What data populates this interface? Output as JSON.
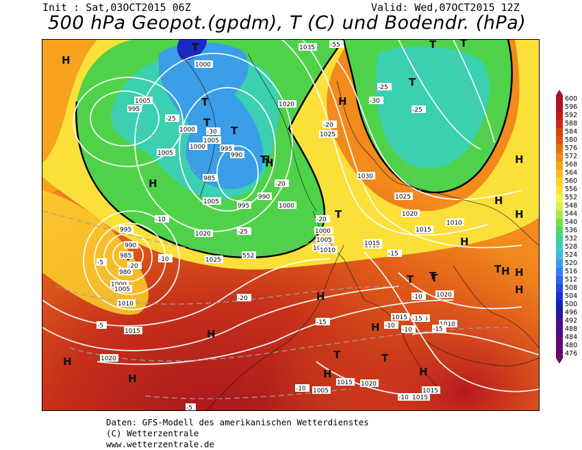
{
  "header": {
    "init": "Init : Sat,03OCT2015 06Z",
    "valid": "Valid: Wed,07OCT2015 12Z",
    "title": "500 hPa Geopot.(gpdm), T (C) und Bodendr. (hPa)"
  },
  "footer": {
    "line1": "Daten: GFS-Modell des amerikanischen Wetterdienstes",
    "line2": "(C) Wetterzentrale",
    "line3": "www.wetterzentrale.de"
  },
  "scale": {
    "labels": [
      "600",
      "596",
      "592",
      "588",
      "584",
      "580",
      "576",
      "572",
      "568",
      "564",
      "560",
      "556",
      "552",
      "548",
      "544",
      "540",
      "536",
      "532",
      "528",
      "524",
      "520",
      "516",
      "512",
      "508",
      "504",
      "500",
      "496",
      "492",
      "488",
      "484",
      "480",
      "476"
    ],
    "colors": [
      "#a80f2c",
      "#b31424",
      "#c01a1a",
      "#cc2a12",
      "#d8400c",
      "#e0560b",
      "#e86e0e",
      "#ef8a13",
      "#f4a31a",
      "#f8bb20",
      "#fbd12a",
      "#fee234",
      "#fff03e",
      "#d9f24a",
      "#a8ea4c",
      "#6fe04c",
      "#4cd86a",
      "#3fd298",
      "#3ec8c4",
      "#3db8e0",
      "#3a9ef0",
      "#3282f2",
      "#2a66ee",
      "#2048e4",
      "#1830d2",
      "#1620b8",
      "#2a16a4",
      "#3c1296",
      "#4a0e8a",
      "#580a7e",
      "#660870",
      "#6f0564"
    ]
  },
  "map_labels": {
    "highs": [
      "H",
      "H",
      "H",
      "H",
      "H",
      "H",
      "H",
      "H",
      "H",
      "H",
      "H",
      "H",
      "H",
      "H",
      "H",
      "H",
      "H",
      "H",
      "H"
    ],
    "lows": [
      "T",
      "T",
      "T",
      "T",
      "T",
      "T",
      "T",
      "T",
      "T",
      "T",
      "T",
      "T",
      "T",
      "T",
      "T",
      "T"
    ],
    "isobars": [
      "1000",
      "1005",
      "995",
      "1000",
      "1005",
      "995",
      "985",
      "1000",
      "990",
      "990",
      "995",
      "1005",
      "1000",
      "1005",
      "995",
      "990",
      "985",
      "980",
      "1000",
      "1005",
      "1010",
      "1015",
      "1020",
      "1025",
      "1035",
      "1020",
      "1025",
      "1030",
      "1025",
      "1020",
      "1015",
      "1015",
      "1010",
      "1000",
      "1005",
      "1010",
      "1015",
      "1020",
      "1015",
      "1010",
      "1015",
      "1020",
      "1015",
      "1015",
      "1005",
      "1010",
      "1015",
      "1020"
    ],
    "temps": [
      "-55",
      "-25",
      "-30",
      "-30",
      "-25",
      "-25",
      "-20",
      "-20",
      "-20",
      "-25",
      "-20",
      "-10",
      "-10",
      "-5",
      "-10",
      "-15",
      "-15",
      "-10",
      "-15",
      "-10",
      "-15",
      "-10",
      "-10",
      "-5",
      "-5",
      "-10",
      "-10",
      "-20"
    ],
    "contour_552": "552"
  },
  "colors": {
    "outer_orange": "#f28a1c",
    "deep_red": "#b51a1e",
    "yellow": "#fbe43a",
    "green": "#4fd24a",
    "cyan": "#3ad0b0",
    "blue": "#3a8ee8"
  }
}
